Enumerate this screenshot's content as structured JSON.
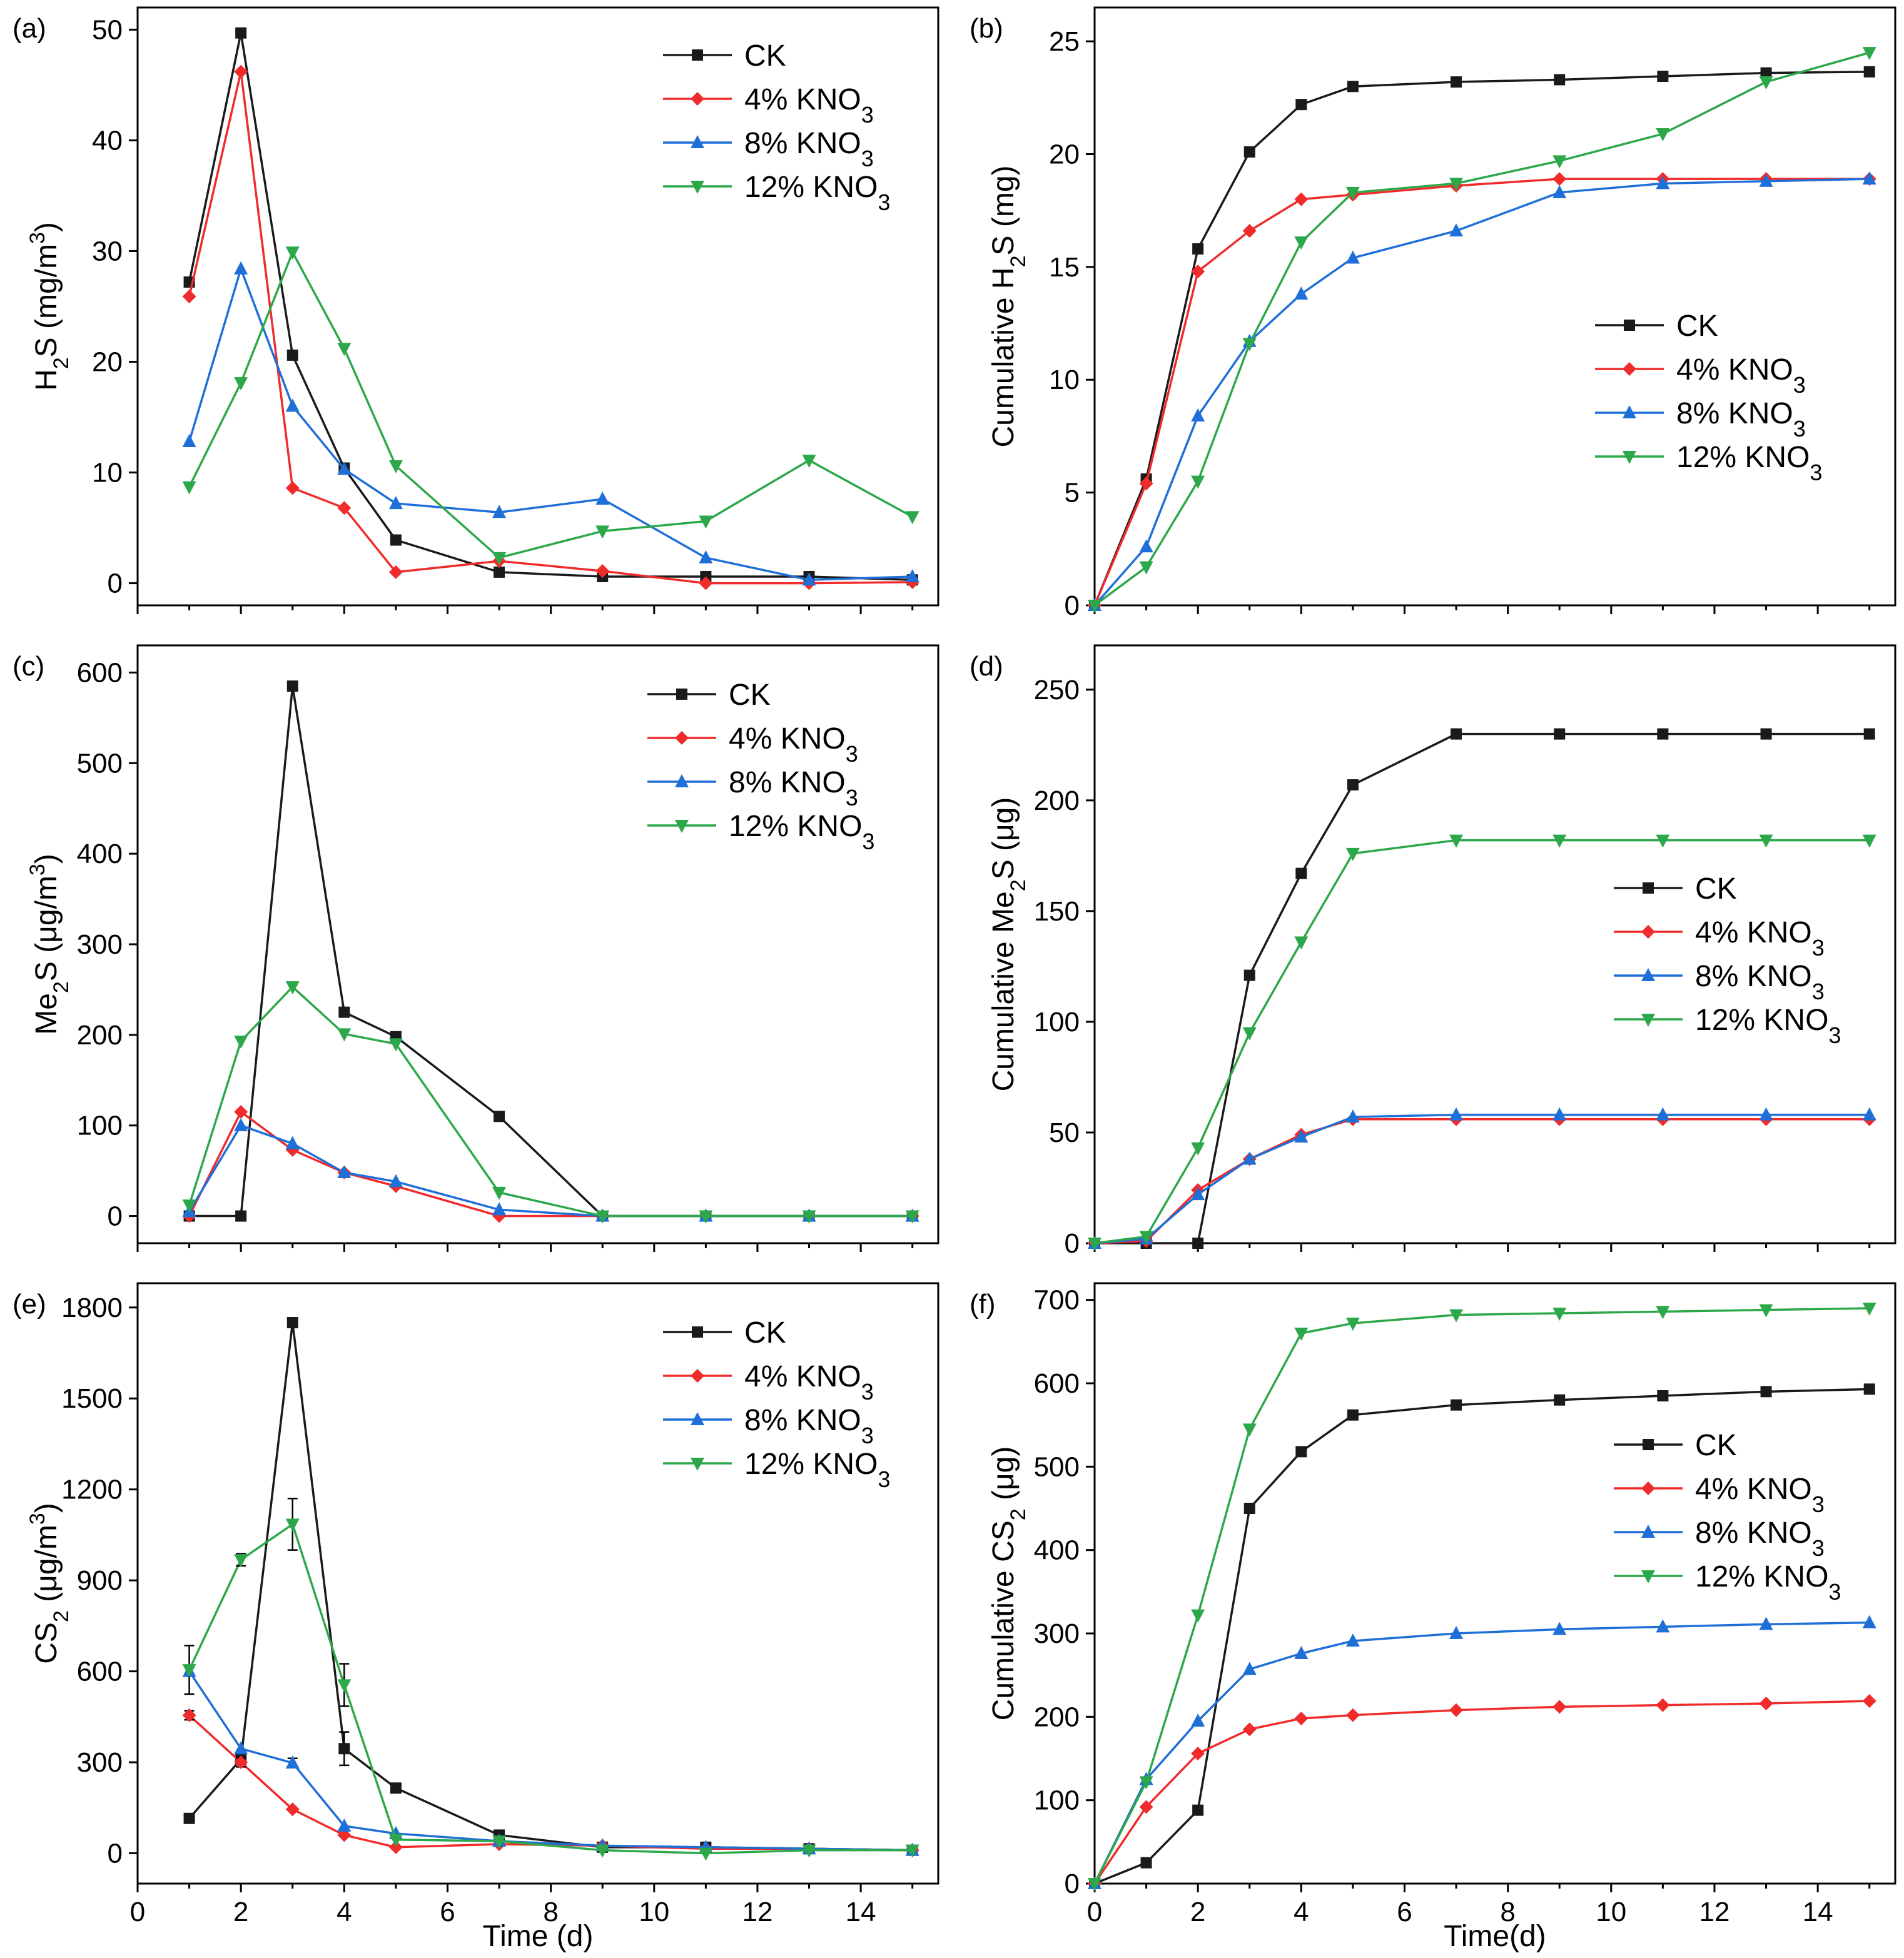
{
  "figure": {
    "x_axis_title_left": "Time (d)",
    "x_axis_title_right": "Time(d)"
  },
  "colors": {
    "CK": "#1a1a1a",
    "4% KNO3": "#f02b2b",
    "8% KNO3": "#1f6fd8",
    "12% KNO3": "#2ca84a"
  },
  "chart_data": [
    {
      "type": "line",
      "panel": "(a)",
      "title": "",
      "ylabel": {
        "prefix": "H",
        "sub": "2",
        "mid": "S (mg/m",
        "sup": "3",
        "suffix": ")"
      },
      "xlabel": "",
      "xlim": [
        0,
        15.5
      ],
      "ylim": [
        -2,
        52
      ],
      "yticks": [
        0,
        10,
        20,
        30,
        40,
        50
      ],
      "xticks": [
        0,
        2,
        4,
        6,
        8,
        10,
        12,
        14
      ],
      "show_x_tick_labels": false,
      "legend_pos": "top-right",
      "series": [
        {
          "name": "CK",
          "label_main": "CK",
          "label_sub": "",
          "marker": "square",
          "x": [
            1,
            2,
            3,
            4,
            5,
            7,
            9,
            11,
            13,
            15
          ],
          "y": [
            27.2,
            49.7,
            20.6,
            10.4,
            3.9,
            1.0,
            0.6,
            0.6,
            0.6,
            0.3
          ]
        },
        {
          "name": "4% KNO3",
          "label_main": "4% KNO",
          "label_sub": "3",
          "marker": "diamond",
          "x": [
            1,
            2,
            3,
            4,
            5,
            7,
            9,
            11,
            13,
            15
          ],
          "y": [
            25.9,
            46.2,
            8.6,
            6.8,
            1.0,
            2.0,
            1.1,
            0.0,
            0.0,
            0.1
          ]
        },
        {
          "name": "8% KNO3",
          "label_main": "8% KNO",
          "label_sub": "3",
          "marker": "triangle-up",
          "x": [
            1,
            2,
            3,
            4,
            5,
            7,
            9,
            11,
            13,
            15
          ],
          "y": [
            12.8,
            28.4,
            16.0,
            10.3,
            7.2,
            6.4,
            7.6,
            2.3,
            0.3,
            0.6
          ]
        },
        {
          "name": "12% KNO3",
          "label_main": "12% KNO",
          "label_sub": "3",
          "marker": "triangle-down",
          "x": [
            1,
            2,
            3,
            4,
            5,
            7,
            9,
            11,
            13,
            15
          ],
          "y": [
            8.7,
            18.1,
            29.9,
            21.2,
            10.6,
            2.3,
            4.7,
            5.6,
            11.1,
            6.0
          ]
        }
      ]
    },
    {
      "type": "line",
      "panel": "(b)",
      "title": "",
      "ylabel": {
        "prefix": "Cumulative H",
        "sub": "2",
        "mid": "S (mg)",
        "sup": "",
        "suffix": ""
      },
      "xlabel": "",
      "xlim": [
        0,
        15.5
      ],
      "ylim": [
        0,
        26.5
      ],
      "yticks": [
        0,
        5,
        10,
        15,
        20,
        25
      ],
      "xticks": [
        0,
        2,
        4,
        6,
        8,
        10,
        12,
        14
      ],
      "show_x_tick_labels": false,
      "legend_pos": "center-right",
      "series": [
        {
          "name": "CK",
          "label_main": "CK",
          "label_sub": "",
          "marker": "square",
          "x": [
            0,
            1,
            2,
            3,
            4,
            5,
            7,
            9,
            11,
            13,
            15
          ],
          "y": [
            0,
            5.6,
            15.8,
            20.1,
            22.2,
            23.0,
            23.2,
            23.3,
            23.45,
            23.6,
            23.65
          ]
        },
        {
          "name": "4% KNO3",
          "label_main": "4% KNO",
          "label_sub": "3",
          "marker": "diamond",
          "x": [
            0,
            1,
            2,
            3,
            4,
            5,
            7,
            9,
            11,
            13,
            15
          ],
          "y": [
            0,
            5.4,
            14.8,
            16.6,
            18.0,
            18.2,
            18.6,
            18.9,
            18.9,
            18.9,
            18.9
          ]
        },
        {
          "name": "8% KNO3",
          "label_main": "8% KNO",
          "label_sub": "3",
          "marker": "triangle-up",
          "x": [
            0,
            1,
            2,
            3,
            4,
            5,
            7,
            9,
            11,
            13,
            15
          ],
          "y": [
            0,
            2.6,
            8.4,
            11.7,
            13.8,
            15.4,
            16.6,
            18.3,
            18.7,
            18.8,
            18.9
          ]
        },
        {
          "name": "12% KNO3",
          "label_main": "12% KNO",
          "label_sub": "3",
          "marker": "triangle-down",
          "x": [
            0,
            1,
            2,
            3,
            4,
            5,
            7,
            9,
            11,
            13,
            15
          ],
          "y": [
            0,
            1.7,
            5.5,
            11.6,
            16.1,
            18.3,
            18.7,
            19.7,
            20.9,
            23.2,
            24.5
          ]
        }
      ]
    },
    {
      "type": "line",
      "panel": "(c)",
      "title": "",
      "ylabel": {
        "prefix": "Me",
        "sub": "2",
        "mid": "S (μg/m",
        "sup": "3",
        "suffix": ")"
      },
      "xlabel": "",
      "xlim": [
        0,
        15.5
      ],
      "ylim": [
        -30,
        630
      ],
      "yticks": [
        0,
        100,
        200,
        300,
        400,
        500,
        600
      ],
      "xticks": [
        0,
        2,
        4,
        6,
        8,
        10,
        12,
        14
      ],
      "show_x_tick_labels": false,
      "legend_pos": "top-right",
      "series": [
        {
          "name": "CK",
          "label_main": "CK",
          "label_sub": "",
          "marker": "square",
          "x": [
            1,
            2,
            3,
            4,
            5,
            7,
            9,
            11,
            13,
            15
          ],
          "y": [
            0,
            0,
            585,
            225,
            198,
            110,
            0,
            0,
            0,
            0
          ]
        },
        {
          "name": "4% KNO3",
          "label_main": "4% KNO",
          "label_sub": "3",
          "marker": "diamond",
          "x": [
            1,
            2,
            3,
            4,
            5,
            7,
            9,
            11,
            13,
            15
          ],
          "y": [
            0,
            115,
            73,
            48,
            33,
            0,
            0,
            0,
            0,
            0
          ]
        },
        {
          "name": "8% KNO3",
          "label_main": "8% KNO",
          "label_sub": "3",
          "marker": "triangle-up",
          "x": [
            1,
            2,
            3,
            4,
            5,
            7,
            9,
            11,
            13,
            15
          ],
          "y": [
            5,
            100,
            80,
            48,
            38,
            7,
            0,
            0,
            0,
            0
          ]
        },
        {
          "name": "12% KNO3",
          "label_main": "12% KNO",
          "label_sub": "3",
          "marker": "triangle-down",
          "x": [
            1,
            2,
            3,
            4,
            5,
            7,
            9,
            11,
            13,
            15
          ],
          "y": [
            12,
            193,
            253,
            201,
            190,
            26,
            0,
            0,
            0,
            0
          ]
        }
      ]
    },
    {
      "type": "line",
      "panel": "(d)",
      "title": "",
      "ylabel": {
        "prefix": "Cumulative Me",
        "sub": "2",
        "mid": "S (μg)",
        "sup": "",
        "suffix": ""
      },
      "xlabel": "",
      "xlim": [
        0,
        15.5
      ],
      "ylim": [
        0,
        270
      ],
      "yticks": [
        0,
        50,
        100,
        150,
        200,
        250
      ],
      "xticks": [
        0,
        2,
        4,
        6,
        8,
        10,
        12,
        14
      ],
      "show_x_tick_labels": false,
      "legend_pos": "center-right",
      "series": [
        {
          "name": "CK",
          "label_main": "CK",
          "label_sub": "",
          "marker": "square",
          "x": [
            0,
            1,
            2,
            3,
            4,
            5,
            7,
            9,
            11,
            13,
            15
          ],
          "y": [
            0,
            0,
            0,
            121,
            167,
            207,
            230,
            230,
            230,
            230,
            230
          ]
        },
        {
          "name": "4% KNO3",
          "label_main": "4% KNO",
          "label_sub": "3",
          "marker": "diamond",
          "x": [
            0,
            1,
            2,
            3,
            4,
            5,
            7,
            9,
            11,
            13,
            15
          ],
          "y": [
            0,
            1,
            24,
            38,
            49,
            56,
            56,
            56,
            56,
            56,
            56
          ]
        },
        {
          "name": "8% KNO3",
          "label_main": "8% KNO",
          "label_sub": "3",
          "marker": "triangle-up",
          "x": [
            0,
            1,
            2,
            3,
            4,
            5,
            7,
            9,
            11,
            13,
            15
          ],
          "y": [
            0,
            2,
            22,
            38,
            48,
            57,
            58,
            58,
            58,
            58,
            58
          ]
        },
        {
          "name": "12% KNO3",
          "label_main": "12% KNO",
          "label_sub": "3",
          "marker": "triangle-down",
          "x": [
            0,
            1,
            2,
            3,
            4,
            5,
            7,
            9,
            11,
            13,
            15
          ],
          "y": [
            0,
            3,
            43,
            95,
            136,
            176,
            182,
            182,
            182,
            182,
            182
          ]
        }
      ]
    },
    {
      "type": "line",
      "panel": "(e)",
      "title": "",
      "ylabel": {
        "prefix": "CS",
        "sub": "2",
        "mid": " (μg/m",
        "sup": "3",
        "suffix": ")"
      },
      "xlabel": "Time (d)",
      "xlim": [
        0,
        15.5
      ],
      "ylim": [
        -100,
        1880
      ],
      "yticks": [
        0,
        300,
        600,
        900,
        1200,
        1500,
        1800
      ],
      "xticks": [
        0,
        2,
        4,
        6,
        8,
        10,
        12,
        14
      ],
      "show_x_tick_labels": true,
      "legend_pos": "top-right",
      "series": [
        {
          "name": "CK",
          "label_main": "CK",
          "label_sub": "",
          "marker": "square",
          "x": [
            1,
            2,
            3,
            4,
            5,
            7,
            9,
            11,
            13,
            15
          ],
          "y": [
            115,
            310,
            1750,
            345,
            215,
            60,
            20,
            20,
            15,
            10
          ],
          "err": [
            0,
            0,
            0,
            55,
            0,
            0,
            0,
            0,
            0,
            0
          ]
        },
        {
          "name": "4% KNO3",
          "label_main": "4% KNO",
          "label_sub": "3",
          "marker": "diamond",
          "x": [
            1,
            2,
            3,
            4,
            5,
            7,
            9,
            11,
            13,
            15
          ],
          "y": [
            455,
            300,
            145,
            60,
            20,
            30,
            25,
            15,
            15,
            10
          ],
          "err": [
            15,
            15,
            0,
            0,
            0,
            0,
            0,
            0,
            0,
            0
          ]
        },
        {
          "name": "8% KNO3",
          "label_main": "8% KNO",
          "label_sub": "3",
          "marker": "triangle-up",
          "x": [
            1,
            2,
            3,
            4,
            5,
            7,
            9,
            11,
            13,
            15
          ],
          "y": [
            600,
            345,
            298,
            90,
            65,
            40,
            25,
            20,
            15,
            10
          ],
          "err": [
            0,
            0,
            15,
            0,
            0,
            0,
            0,
            0,
            0,
            0
          ]
        },
        {
          "name": "12% KNO3",
          "label_main": "12% KNO",
          "label_sub": "3",
          "marker": "triangle-down",
          "x": [
            1,
            2,
            3,
            4,
            5,
            7,
            9,
            11,
            13,
            15
          ],
          "y": [
            605,
            968,
            1085,
            555,
            45,
            40,
            10,
            0,
            10,
            10
          ],
          "err": [
            80,
            20,
            85,
            70,
            0,
            0,
            0,
            0,
            0,
            0
          ]
        }
      ]
    },
    {
      "type": "line",
      "panel": "(f)",
      "title": "",
      "ylabel": {
        "prefix": "Cumulative CS",
        "sub": "2",
        "mid": " (μg)",
        "sup": "",
        "suffix": ""
      },
      "xlabel": "Time(d)",
      "xlim": [
        0,
        15.5
      ],
      "ylim": [
        0,
        720
      ],
      "yticks": [
        0,
        100,
        200,
        300,
        400,
        500,
        600,
        700
      ],
      "xticks": [
        0,
        2,
        4,
        6,
        8,
        10,
        12,
        14
      ],
      "show_x_tick_labels": true,
      "legend_pos": "center-right",
      "series": [
        {
          "name": "CK",
          "label_main": "CK",
          "label_sub": "",
          "marker": "square",
          "x": [
            0,
            1,
            2,
            3,
            4,
            5,
            7,
            9,
            11,
            13,
            15
          ],
          "y": [
            0,
            25,
            88,
            450,
            518,
            562,
            574,
            580,
            585,
            590,
            593
          ]
        },
        {
          "name": "4% KNO3",
          "label_main": "4% KNO",
          "label_sub": "3",
          "marker": "diamond",
          "x": [
            0,
            1,
            2,
            3,
            4,
            5,
            7,
            9,
            11,
            13,
            15
          ],
          "y": [
            0,
            92,
            156,
            185,
            198,
            202,
            208,
            212,
            214,
            216,
            219
          ]
        },
        {
          "name": "8% KNO3",
          "label_main": "8% KNO",
          "label_sub": "3",
          "marker": "triangle-up",
          "x": [
            0,
            1,
            2,
            3,
            4,
            5,
            7,
            9,
            11,
            13,
            15
          ],
          "y": [
            0,
            125,
            195,
            257,
            276,
            291,
            300,
            305,
            308,
            311,
            313
          ]
        },
        {
          "name": "12% KNO3",
          "label_main": "12% KNO",
          "label_sub": "3",
          "marker": "triangle-down",
          "x": [
            0,
            1,
            2,
            3,
            4,
            5,
            7,
            9,
            11,
            13,
            15
          ],
          "y": [
            0,
            122,
            322,
            545,
            660,
            672,
            682,
            684,
            686,
            688,
            690
          ]
        }
      ]
    }
  ]
}
